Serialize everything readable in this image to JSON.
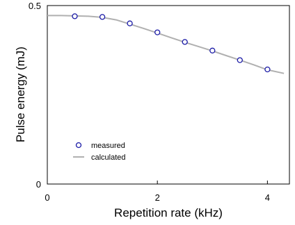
{
  "chart_data": {
    "type": "scatter",
    "xlabel": "Repetition rate (kHz)",
    "ylabel": "Pulse energy (mJ)",
    "xlim": [
      0,
      4.4
    ],
    "ylim": [
      0,
      0.5
    ],
    "x_ticks": [
      0,
      2,
      4
    ],
    "y_ticks": [
      0,
      0.5
    ],
    "x_tick_labels": [
      "0",
      "2",
      "4"
    ],
    "y_tick_labels": [
      "0",
      "0.5"
    ],
    "grid": false,
    "legend_position": "bottom-left",
    "series": [
      {
        "name": "measured",
        "style": "open-circle",
        "color": "#1a1aa6",
        "x": [
          0.5,
          1.0,
          1.5,
          2.0,
          2.5,
          3.0,
          3.5,
          4.0
        ],
        "y": [
          0.47,
          0.468,
          0.45,
          0.425,
          0.398,
          0.374,
          0.347,
          0.321
        ]
      },
      {
        "name": "calculated",
        "style": "line",
        "color": "#b0b0b0",
        "x": [
          0,
          0.25,
          0.5,
          0.75,
          1.0,
          1.25,
          1.5,
          1.75,
          2.0,
          2.25,
          2.5,
          2.75,
          3.0,
          3.25,
          3.5,
          3.75,
          4.0,
          4.3
        ],
        "y": [
          0.472,
          0.472,
          0.471,
          0.47,
          0.467,
          0.46,
          0.448,
          0.436,
          0.423,
          0.41,
          0.397,
          0.385,
          0.373,
          0.36,
          0.347,
          0.334,
          0.32,
          0.31
        ]
      }
    ]
  }
}
